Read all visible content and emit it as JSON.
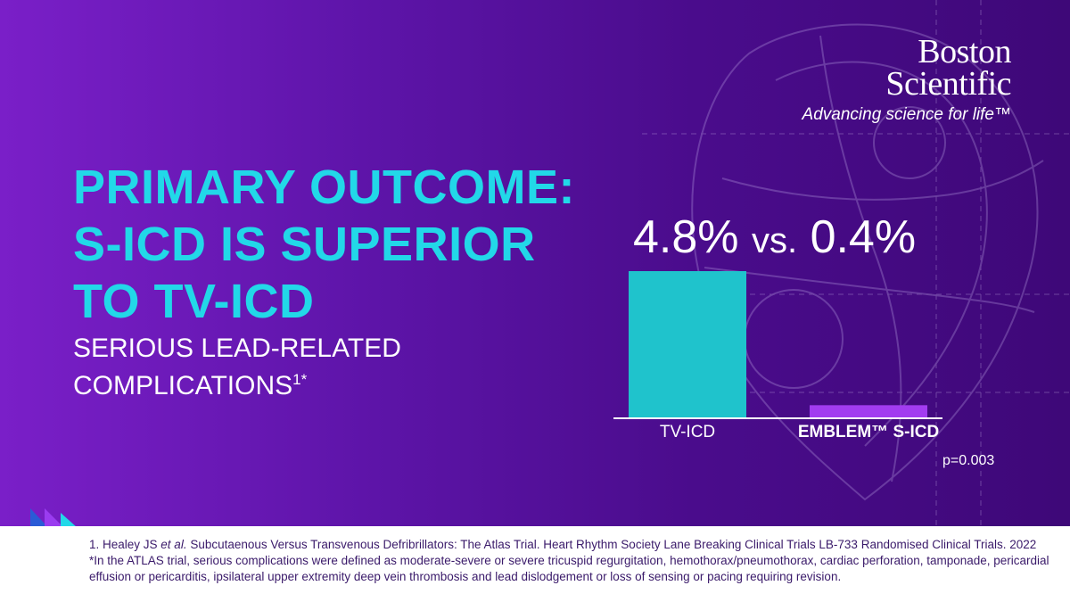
{
  "brand": {
    "name_line1": "Boston",
    "name_line2": "Scientific",
    "tagline": "Advancing science for life™"
  },
  "headline": {
    "line1": "PRIMARY OUTCOME:",
    "line2": "S-ICD IS SUPERIOR",
    "line3": "TO TV-ICD"
  },
  "subhead": {
    "line1": "SERIOUS LEAD-RELATED",
    "line2": "COMPLICATIONS",
    "superscript": "1*"
  },
  "colors": {
    "accent_cyan": "#22d8e8",
    "bar_tv_icd": "#1fc3cc",
    "bar_s_icd": "#a23cf0",
    "background_purple": "#5d14a8"
  },
  "chart_data": {
    "type": "bar",
    "title": "4.8% vs. 0.4%",
    "title_parts": [
      "4.8%",
      "vs.",
      "0.4%"
    ],
    "categories": [
      "TV-ICD",
      "EMBLEM™ S-ICD"
    ],
    "values": [
      4.8,
      0.4
    ],
    "unit": "%",
    "ylim": [
      0,
      4.8
    ],
    "grid": false,
    "annotation": "p=0.003"
  },
  "footer": {
    "ref_prefix": "1. Healey JS ",
    "ref_etal": "et al.",
    "ref_rest": " Subcutaenous Versus Transvenous Defribrillators: The Atlas Trial. Heart Rhythm Society Lane Breaking Clinical Trials LB-733 Randomised Clinical Trials. 2022",
    "note": "*In the ATLAS trial, serious complications were defined as moderate-severe or severe tricuspid regurgitation, hemothorax/pneumothorax, cardiac perforation, tamponade, pericardial effusion or pericarditis, ipsilateral upper extremity deep vein thrombosis and lead dislodgement or loss of sensing or pacing requiring revision."
  }
}
